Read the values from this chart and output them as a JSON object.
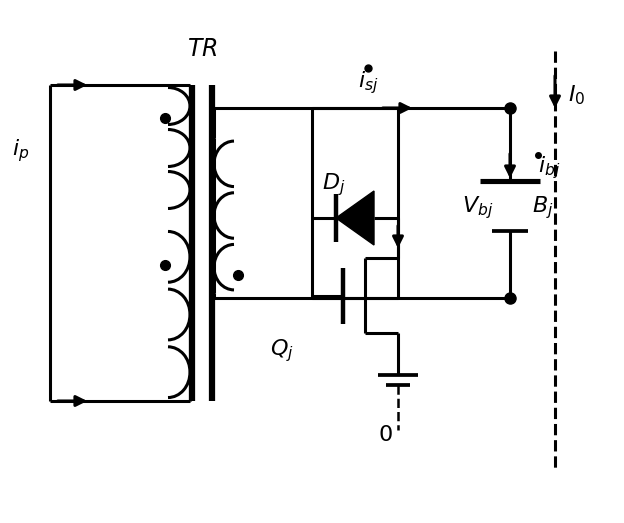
{
  "bg_color": "#ffffff",
  "line_color": "#000000",
  "figsize": [
    6.24,
    5.23
  ],
  "dpi": 100,
  "xlim": [
    0,
    6.24
  ],
  "ylim": [
    0,
    5.23
  ]
}
